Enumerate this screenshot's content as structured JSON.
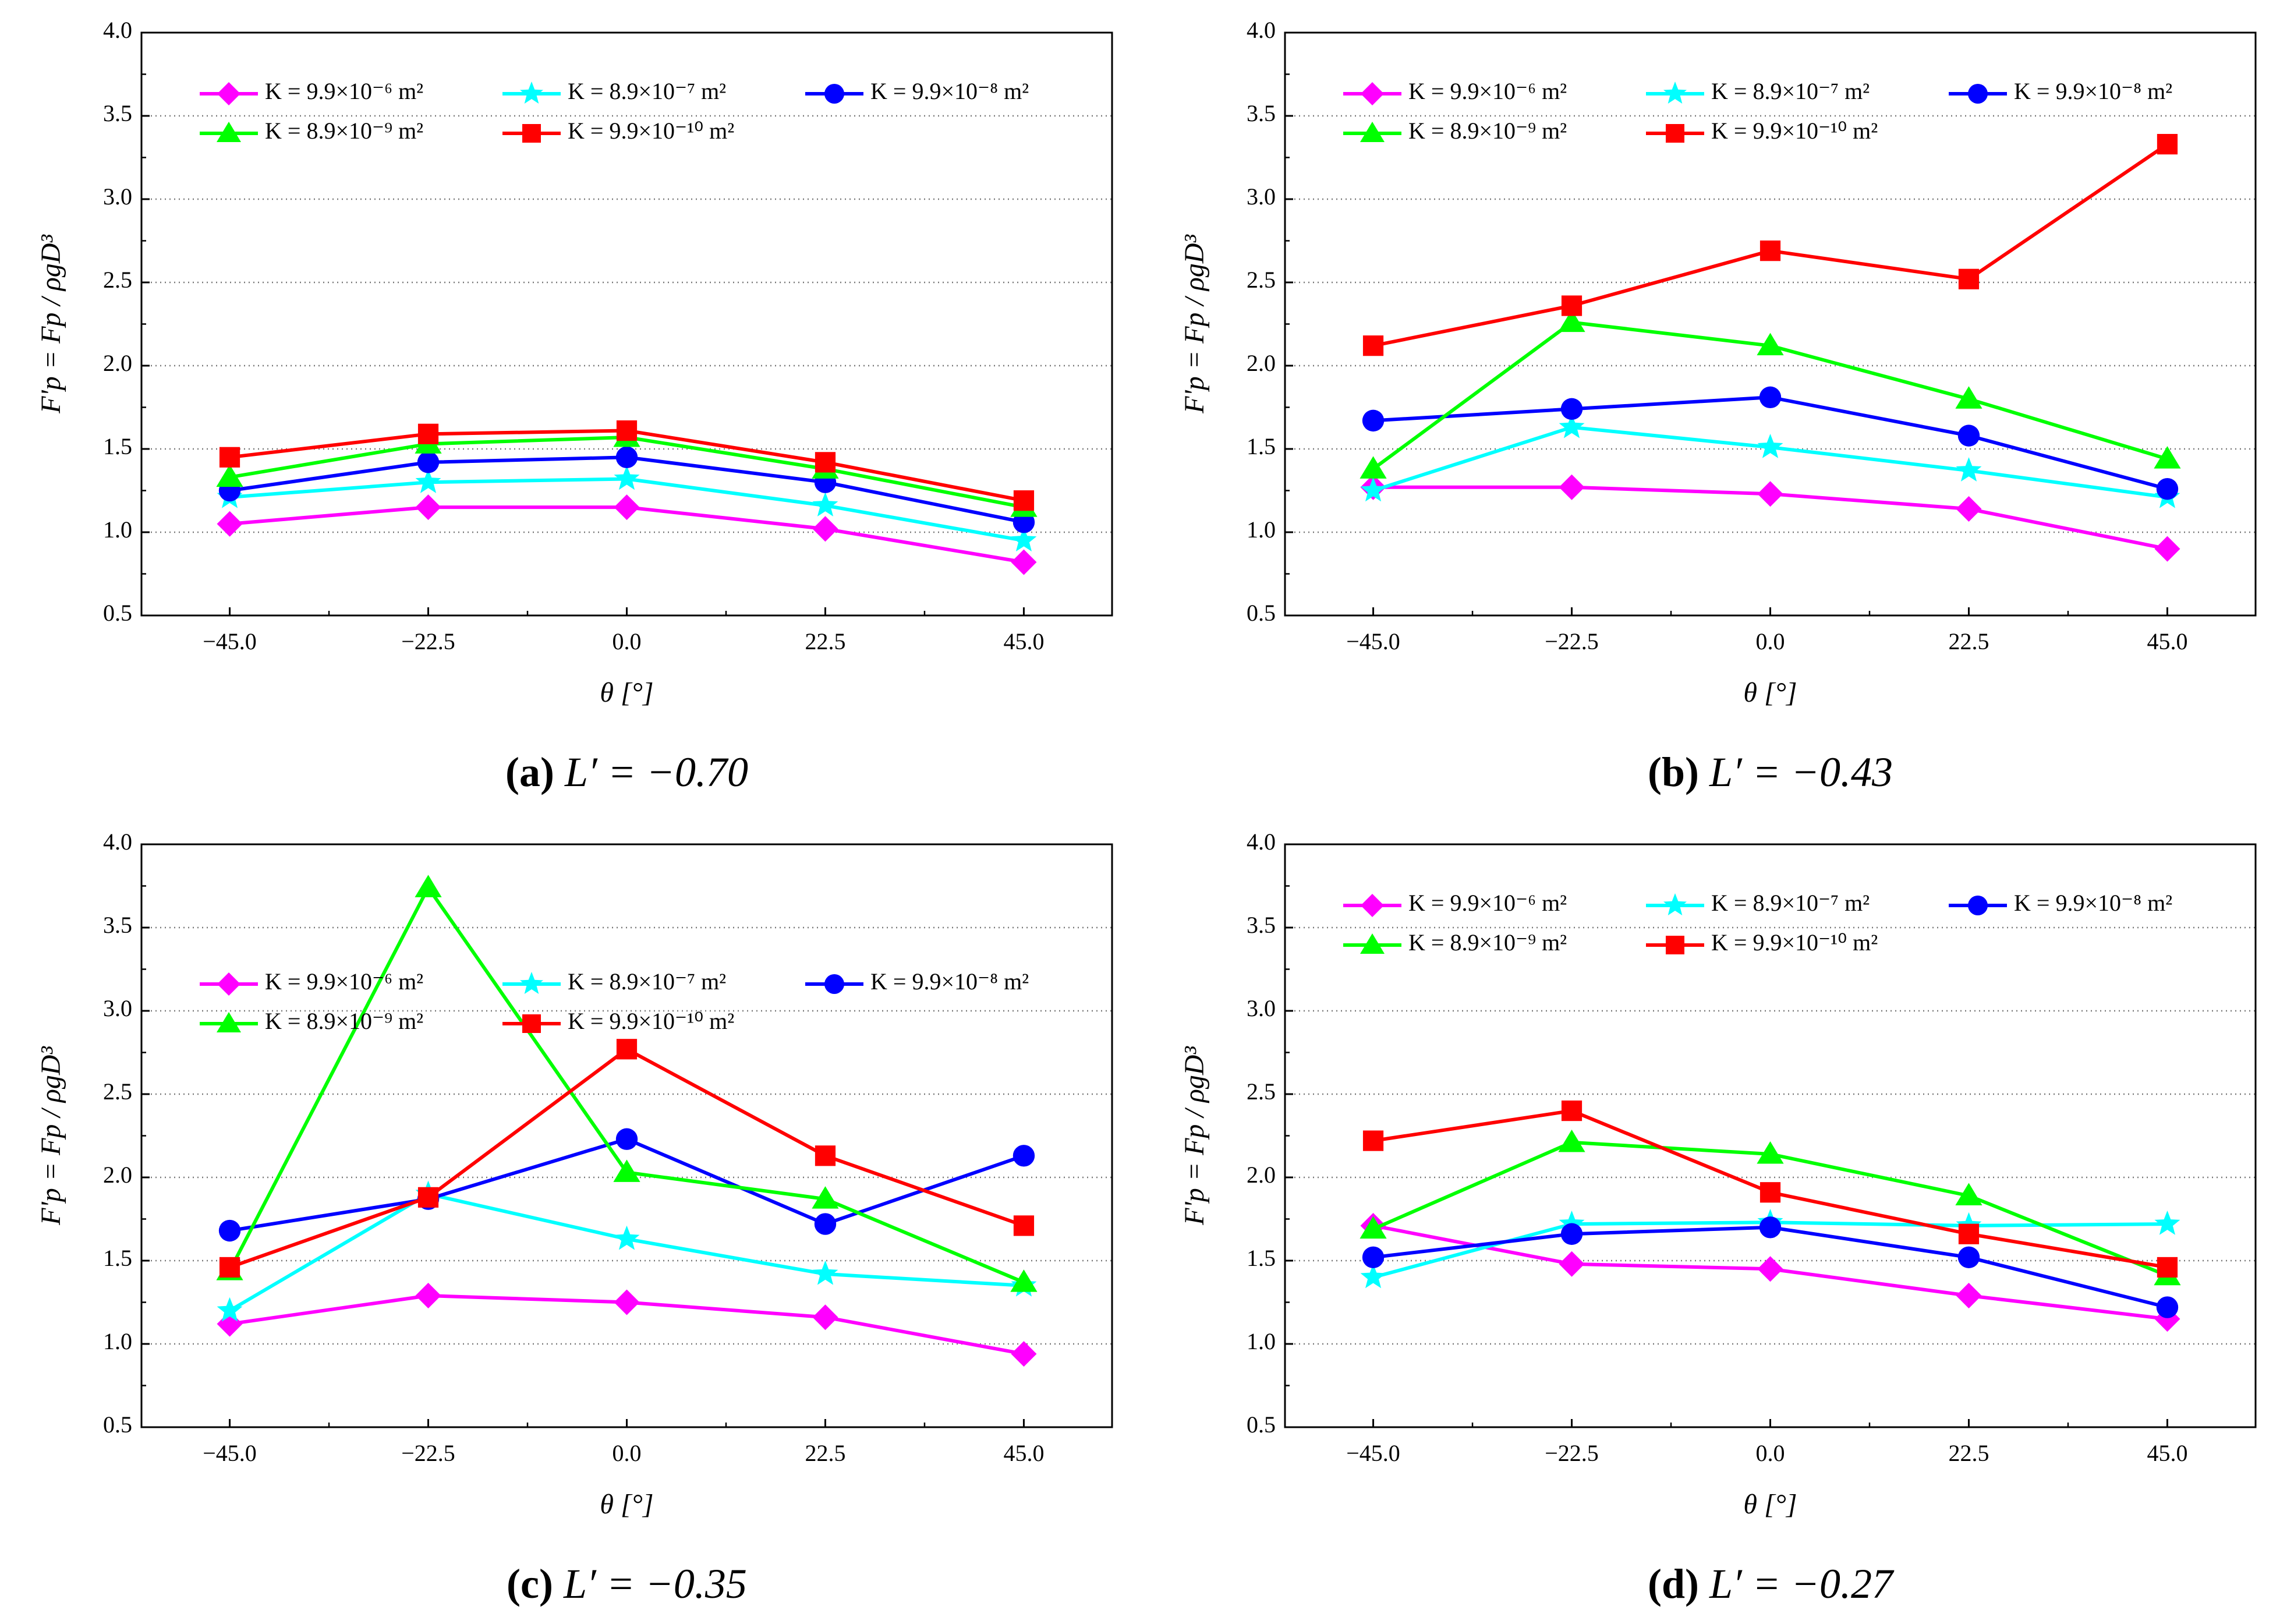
{
  "figure": {
    "y_axis_label": "F'p = Fp / ρgD³",
    "x_axis_label": "θ [°]"
  },
  "chart_data": [
    {
      "type": "line",
      "panel_letter": "a",
      "caption": "L′ = −0.70",
      "xlabel": "θ [°]",
      "ylabel": "F'p = Fp / ρgD³",
      "x": [
        -45.0,
        -22.5,
        0.0,
        22.5,
        45.0
      ],
      "x_tick_labels": [
        "−45.0",
        "−22.5",
        "0.0",
        "22.5",
        "45.0"
      ],
      "xlim": [
        -55,
        55
      ],
      "ylim": [
        0.5,
        4.0
      ],
      "y_ticks": [
        0.5,
        1.0,
        1.5,
        2.0,
        2.5,
        3.0,
        3.5,
        4.0
      ],
      "y_tick_labels": [
        "0.5",
        "1.0",
        "1.5",
        "2.0",
        "2.5",
        "3.0",
        "3.5",
        "4.0"
      ],
      "grid": "horizontal dotted",
      "legend_position": "top",
      "series": [
        {
          "name": "K = 9.9×10⁻⁶ m²",
          "color": "#FF00FF",
          "marker": "diamond",
          "values": [
            1.05,
            1.15,
            1.15,
            1.02,
            0.82
          ]
        },
        {
          "name": "K = 8.9×10⁻⁷ m²",
          "color": "#00FFFF",
          "marker": "star",
          "values": [
            1.21,
            1.3,
            1.32,
            1.16,
            0.95
          ]
        },
        {
          "name": "K = 9.9×10⁻⁸ m²",
          "color": "#0000FF",
          "marker": "circle",
          "values": [
            1.25,
            1.42,
            1.45,
            1.3,
            1.06
          ]
        },
        {
          "name": "K = 8.9×10⁻⁹ m²",
          "color": "#00FF00",
          "marker": "triangle",
          "values": [
            1.33,
            1.53,
            1.57,
            1.38,
            1.15
          ]
        },
        {
          "name": "K = 9.9×10⁻¹⁰ m²",
          "color": "#FF0000",
          "marker": "square",
          "values": [
            1.45,
            1.59,
            1.61,
            1.42,
            1.19
          ]
        }
      ]
    },
    {
      "type": "line",
      "panel_letter": "b",
      "caption": "L′ = −0.43",
      "xlabel": "θ [°]",
      "ylabel": "F'p = Fp / ρgD³",
      "x": [
        -45.0,
        -22.5,
        0.0,
        22.5,
        45.0
      ],
      "x_tick_labels": [
        "−45.0",
        "−22.5",
        "0.0",
        "22.5",
        "45.0"
      ],
      "xlim": [
        -55,
        55
      ],
      "ylim": [
        0.5,
        4.0
      ],
      "y_ticks": [
        0.5,
        1.0,
        1.5,
        2.0,
        2.5,
        3.0,
        3.5,
        4.0
      ],
      "y_tick_labels": [
        "0.5",
        "1.0",
        "1.5",
        "2.0",
        "2.5",
        "3.0",
        "3.5",
        "4.0"
      ],
      "grid": "horizontal dotted",
      "legend_position": "top",
      "series": [
        {
          "name": "K = 9.9×10⁻⁶ m²",
          "color": "#FF00FF",
          "marker": "diamond",
          "values": [
            1.27,
            1.27,
            1.23,
            1.14,
            0.9
          ]
        },
        {
          "name": "K = 8.9×10⁻⁷ m²",
          "color": "#00FFFF",
          "marker": "star",
          "values": [
            1.25,
            1.63,
            1.51,
            1.37,
            1.21
          ]
        },
        {
          "name": "K = 9.9×10⁻⁸ m²",
          "color": "#0000FF",
          "marker": "circle",
          "values": [
            1.67,
            1.74,
            1.81,
            1.58,
            1.26
          ]
        },
        {
          "name": "K = 8.9×10⁻⁹ m²",
          "color": "#00FF00",
          "marker": "triangle",
          "values": [
            1.38,
            2.26,
            2.12,
            1.8,
            1.44
          ]
        },
        {
          "name": "K = 9.9×10⁻¹⁰ m²",
          "color": "#FF0000",
          "marker": "square",
          "values": [
            2.12,
            2.36,
            2.69,
            2.52,
            3.33
          ]
        }
      ]
    },
    {
      "type": "line",
      "panel_letter": "c",
      "caption": "L′ = −0.35",
      "xlabel": "θ [°]",
      "ylabel": "F'p = Fp / ρgD³",
      "x": [
        -45.0,
        -22.5,
        0.0,
        22.5,
        45.0
      ],
      "x_tick_labels": [
        "−45.0",
        "−22.5",
        "0.0",
        "22.5",
        "45.0"
      ],
      "xlim": [
        -55,
        55
      ],
      "ylim": [
        0.5,
        4.0
      ],
      "y_ticks": [
        0.5,
        1.0,
        1.5,
        2.0,
        2.5,
        3.0,
        3.5,
        4.0
      ],
      "y_tick_labels": [
        "0.5",
        "1.0",
        "1.5",
        "2.0",
        "2.5",
        "3.0",
        "3.5",
        "4.0"
      ],
      "grid": "horizontal dotted",
      "legend_position": "upper-middle",
      "series": [
        {
          "name": "K = 9.9×10⁻⁶ m²",
          "color": "#FF00FF",
          "marker": "diamond",
          "values": [
            1.12,
            1.29,
            1.25,
            1.16,
            0.94
          ]
        },
        {
          "name": "K = 8.9×10⁻⁷ m²",
          "color": "#00FFFF",
          "marker": "star",
          "values": [
            1.2,
            1.9,
            1.63,
            1.42,
            1.35
          ]
        },
        {
          "name": "K = 9.9×10⁻⁸ m²",
          "color": "#0000FF",
          "marker": "circle",
          "values": [
            1.68,
            1.87,
            2.23,
            1.72,
            2.13
          ]
        },
        {
          "name": "K = 8.9×10⁻⁹ m²",
          "color": "#00FF00",
          "marker": "triangle",
          "values": [
            1.44,
            3.74,
            2.03,
            1.87,
            1.37
          ]
        },
        {
          "name": "K = 9.9×10⁻¹⁰ m²",
          "color": "#FF0000",
          "marker": "square",
          "values": [
            1.46,
            1.88,
            2.77,
            2.13,
            1.71
          ]
        }
      ]
    },
    {
      "type": "line",
      "panel_letter": "d",
      "caption": "L′ = −0.27",
      "xlabel": "θ [°]",
      "ylabel": "F'p = Fp / ρgD³",
      "x": [
        -45.0,
        -22.5,
        0.0,
        22.5,
        45.0
      ],
      "x_tick_labels": [
        "−45.0",
        "−22.5",
        "0.0",
        "22.5",
        "45.0"
      ],
      "xlim": [
        -55,
        55
      ],
      "ylim": [
        0.5,
        4.0
      ],
      "y_ticks": [
        0.5,
        1.0,
        1.5,
        2.0,
        2.5,
        3.0,
        3.5,
        4.0
      ],
      "y_tick_labels": [
        "0.5",
        "1.0",
        "1.5",
        "2.0",
        "2.5",
        "3.0",
        "3.5",
        "4.0"
      ],
      "grid": "horizontal dotted",
      "legend_position": "top",
      "series": [
        {
          "name": "K = 9.9×10⁻⁶ m²",
          "color": "#FF00FF",
          "marker": "diamond",
          "values": [
            1.71,
            1.48,
            1.45,
            1.29,
            1.15
          ]
        },
        {
          "name": "K = 8.9×10⁻⁷ m²",
          "color": "#00FFFF",
          "marker": "star",
          "values": [
            1.4,
            1.72,
            1.73,
            1.71,
            1.72
          ]
        },
        {
          "name": "K = 9.9×10⁻⁸ m²",
          "color": "#0000FF",
          "marker": "circle",
          "values": [
            1.52,
            1.66,
            1.7,
            1.52,
            1.22
          ]
        },
        {
          "name": "K = 8.9×10⁻⁹ m²",
          "color": "#00FF00",
          "marker": "triangle",
          "values": [
            1.69,
            2.21,
            2.14,
            1.89,
            1.41
          ]
        },
        {
          "name": "K = 9.9×10⁻¹⁰ m²",
          "color": "#FF0000",
          "marker": "square",
          "values": [
            2.22,
            2.4,
            1.91,
            1.66,
            1.46
          ]
        }
      ]
    }
  ]
}
